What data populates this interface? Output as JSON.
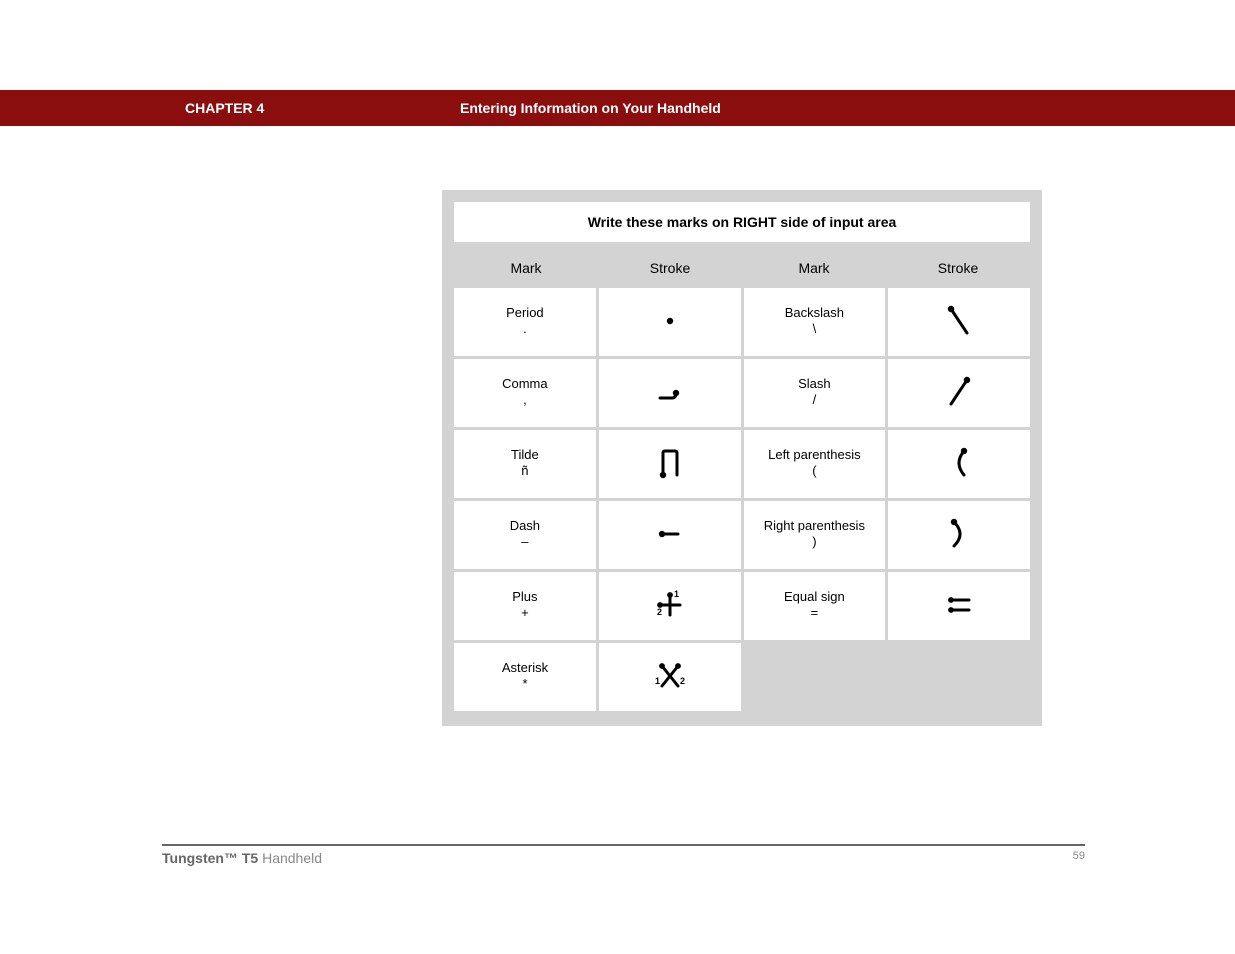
{
  "header": {
    "chapter": "CHAPTER 4",
    "title": "Entering Information on Your Handheld"
  },
  "table": {
    "caption": "Write these marks on RIGHT side of input area",
    "columns": [
      "Mark",
      "Stroke",
      "Mark",
      "Stroke"
    ],
    "rows": [
      {
        "l": {
          "name": "Period",
          "sym": "."
        },
        "ls": "period",
        "r": {
          "name": "Backslash",
          "sym": "\\"
        },
        "rs": "backslash"
      },
      {
        "l": {
          "name": "Comma",
          "sym": ","
        },
        "ls": "comma",
        "r": {
          "name": "Slash",
          "sym": "/"
        },
        "rs": "slash"
      },
      {
        "l": {
          "name": "Tilde",
          "sym": "ñ"
        },
        "ls": "tilde",
        "r": {
          "name": "Left parenthesis",
          "sym": "("
        },
        "rs": "lparen"
      },
      {
        "l": {
          "name": "Dash",
          "sym": "–"
        },
        "ls": "dash",
        "r": {
          "name": "Right parenthesis",
          "sym": ")"
        },
        "rs": "rparen"
      },
      {
        "l": {
          "name": "Plus",
          "sym": "+"
        },
        "ls": "plus",
        "r": {
          "name": "Equal sign",
          "sym": "="
        },
        "rs": "equal"
      },
      {
        "l": {
          "name": "Asterisk",
          "sym": "*"
        },
        "ls": "asterisk",
        "r": null,
        "rs": null
      }
    ]
  },
  "footer": {
    "product_bold": "Tungsten™ T5",
    "product_rest": " Handheld",
    "page": "59"
  },
  "stroke_style": {
    "color": "#000000",
    "line_width": 3,
    "dot_radius": 3.2
  }
}
